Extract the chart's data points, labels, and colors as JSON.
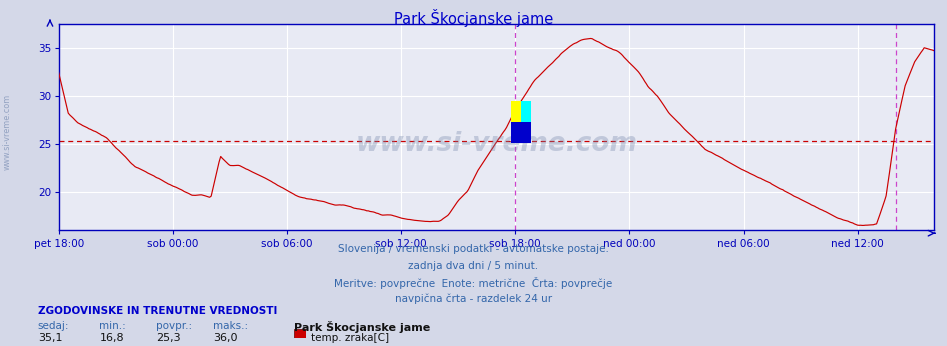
{
  "title": "Park Škocjanske jame",
  "title_color": "#0000cc",
  "bg_color": "#d4d8e8",
  "plot_bg_color": "#e8eaf4",
  "line_color": "#cc0000",
  "grid_color": "#ffffff",
  "axis_color": "#0000bb",
  "avg_line_color": "#cc0000",
  "avg_line_value": 25.3,
  "ymin": 16.8,
  "ymax": 37.5,
  "yticks": [
    20,
    25,
    30,
    35
  ],
  "watermark": "www.si-vreme.com",
  "subtitle_lines": [
    "Slovenija / vremenski podatki - avtomatske postaje.",
    "zadnja dva dni / 5 minut.",
    "Meritve: povprečne  Enote: metrične  Črta: povprečje",
    "navpična črta - razdelek 24 ur"
  ],
  "footer_label": "ZGODOVINSKE IN TRENUTNE VREDNOSTI",
  "footer_cols": [
    "sedaj:",
    "min.:",
    "povpr.:",
    "maks.:"
  ],
  "footer_vals": [
    "35,1",
    "16,8",
    "25,3",
    "36,0"
  ],
  "footer_station": "Park Škocjanske jame",
  "footer_series": "temp. zraka[C]",
  "footer_series_color": "#cc0000",
  "xtick_labels": [
    "pet 18:00",
    "sob 00:00",
    "sob 06:00",
    "sob 12:00",
    "sob 18:00",
    "ned 00:00",
    "ned 06:00",
    "ned 12:00"
  ],
  "total_hours": 46,
  "keypoints": [
    [
      0,
      32.2
    ],
    [
      0.5,
      28.0
    ],
    [
      1.0,
      27.0
    ],
    [
      1.5,
      26.5
    ],
    [
      2.0,
      26.0
    ],
    [
      2.5,
      25.5
    ],
    [
      3.0,
      24.5
    ],
    [
      3.5,
      23.5
    ],
    [
      4.0,
      22.5
    ],
    [
      4.5,
      22.0
    ],
    [
      5.0,
      21.5
    ],
    [
      5.5,
      21.0
    ],
    [
      6.0,
      20.5
    ],
    [
      6.5,
      20.0
    ],
    [
      7.0,
      19.5
    ],
    [
      7.5,
      19.5
    ],
    [
      8.0,
      19.2
    ],
    [
      8.5,
      23.5
    ],
    [
      9.0,
      22.5
    ],
    [
      9.5,
      22.5
    ],
    [
      10.0,
      22.0
    ],
    [
      10.5,
      21.5
    ],
    [
      11.0,
      21.0
    ],
    [
      11.5,
      20.5
    ],
    [
      12.0,
      20.0
    ],
    [
      12.5,
      19.5
    ],
    [
      13.0,
      19.2
    ],
    [
      13.5,
      19.0
    ],
    [
      14.0,
      18.8
    ],
    [
      14.5,
      18.5
    ],
    [
      15.0,
      18.5
    ],
    [
      15.5,
      18.2
    ],
    [
      16.0,
      18.0
    ],
    [
      16.5,
      17.8
    ],
    [
      17.0,
      17.5
    ],
    [
      17.5,
      17.5
    ],
    [
      18.0,
      17.2
    ],
    [
      18.5,
      17.0
    ],
    [
      19.0,
      16.9
    ],
    [
      19.5,
      16.8
    ],
    [
      20.0,
      16.8
    ],
    [
      20.5,
      17.5
    ],
    [
      21.0,
      19.0
    ],
    [
      21.5,
      20.0
    ],
    [
      22.0,
      22.0
    ],
    [
      22.5,
      23.5
    ],
    [
      23.0,
      25.0
    ],
    [
      23.5,
      26.5
    ],
    [
      24.0,
      28.5
    ],
    [
      24.5,
      30.0
    ],
    [
      25.0,
      31.5
    ],
    [
      25.5,
      32.5
    ],
    [
      26.0,
      33.5
    ],
    [
      26.5,
      34.5
    ],
    [
      27.0,
      35.3
    ],
    [
      27.5,
      35.8
    ],
    [
      28.0,
      36.0
    ],
    [
      28.5,
      35.5
    ],
    [
      29.0,
      35.0
    ],
    [
      29.5,
      34.5
    ],
    [
      30.0,
      33.5
    ],
    [
      30.5,
      32.5
    ],
    [
      31.0,
      31.0
    ],
    [
      31.5,
      30.0
    ],
    [
      32.0,
      28.5
    ],
    [
      32.5,
      27.5
    ],
    [
      33.0,
      26.5
    ],
    [
      33.5,
      25.5
    ],
    [
      34.0,
      24.5
    ],
    [
      34.5,
      24.0
    ],
    [
      35.0,
      23.5
    ],
    [
      35.5,
      23.0
    ],
    [
      36.0,
      22.5
    ],
    [
      36.5,
      22.0
    ],
    [
      37.0,
      21.5
    ],
    [
      37.5,
      21.0
    ],
    [
      38.0,
      20.5
    ],
    [
      38.5,
      20.0
    ],
    [
      39.0,
      19.5
    ],
    [
      39.5,
      19.0
    ],
    [
      40.0,
      18.5
    ],
    [
      40.5,
      18.0
    ],
    [
      41.0,
      17.5
    ],
    [
      41.5,
      17.2
    ],
    [
      42.0,
      16.8
    ],
    [
      42.5,
      16.8
    ],
    [
      43.0,
      17.0
    ],
    [
      43.5,
      20.0
    ],
    [
      44.0,
      27.0
    ],
    [
      44.5,
      31.5
    ],
    [
      45.0,
      34.0
    ],
    [
      45.5,
      35.5
    ],
    [
      46.0,
      35.2
    ]
  ]
}
